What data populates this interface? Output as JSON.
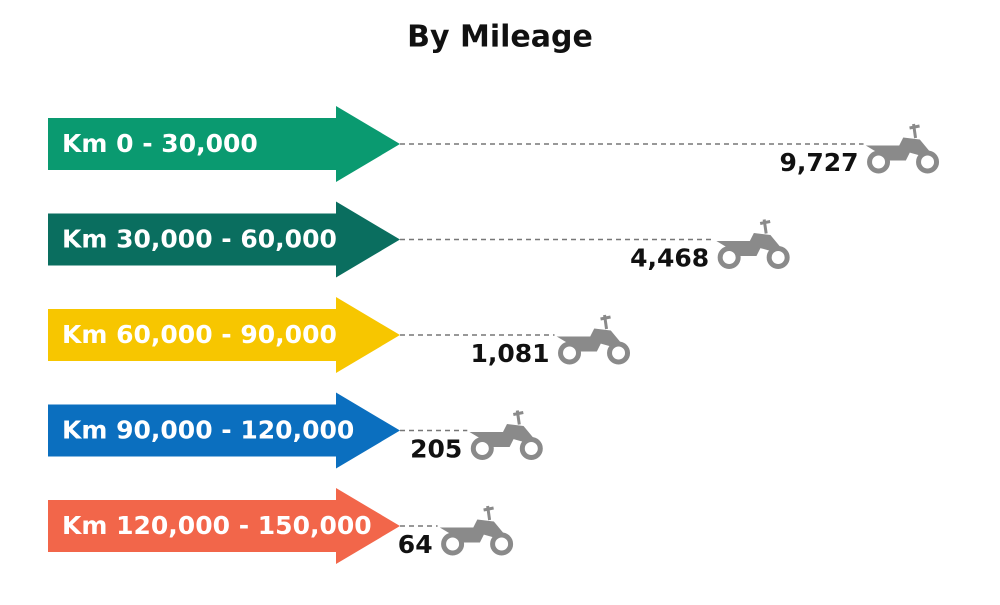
{
  "chart_data": {
    "type": "bar",
    "title": "By Mileage",
    "categories": [
      "Km 0 - 30,000",
      "Km 30,000 - 60,000",
      "Km 60,000 - 90,000",
      "Km 90,000 - 120,000",
      "Km 120,000 - 150,000"
    ],
    "values": [
      9727,
      4468,
      1081,
      205,
      64
    ],
    "value_labels": [
      "9,727",
      "4,468",
      "1,081",
      "205",
      "64"
    ],
    "colors": [
      "#0a9a70",
      "#0a6e5f",
      "#f7c600",
      "#0b6fbf",
      "#f2664a"
    ],
    "xscale": "sqrt"
  }
}
